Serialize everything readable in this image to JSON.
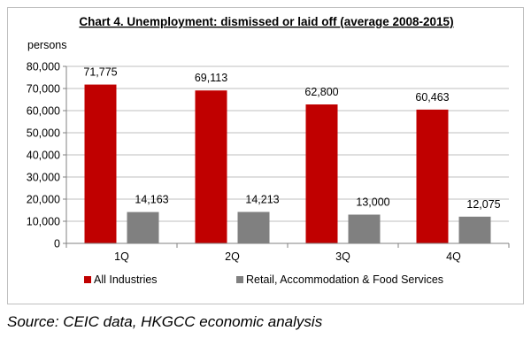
{
  "chart_data": {
    "type": "bar",
    "title": "Chart 4. Unemployment: dismissed or laid off  (average 2008-2015)",
    "ylabel": "persons",
    "xlabel": "",
    "categories": [
      "1Q",
      "2Q",
      "3Q",
      "4Q"
    ],
    "series": [
      {
        "name": "All Industries",
        "values": [
          71775,
          69113,
          62800,
          60463
        ],
        "labels": [
          "71,775",
          "69,113",
          "62,800",
          "60,463"
        ],
        "color": "#c00000"
      },
      {
        "name": "Retail, Accommodation & Food Services",
        "values": [
          14163,
          14213,
          13000,
          12075
        ],
        "labels": [
          "14,163",
          "14,213",
          "13,000",
          "12,075"
        ],
        "color": "#808080"
      }
    ],
    "ylim": [
      0,
      80000
    ],
    "yticks": [
      0,
      10000,
      20000,
      30000,
      40000,
      50000,
      60000,
      70000,
      80000
    ],
    "ytick_labels": [
      "0",
      "10,000",
      "20,000",
      "30,000",
      "40,000",
      "50,000",
      "60,000",
      "70,000",
      "80,000"
    ],
    "grid": true,
    "legend": "bottom"
  },
  "source": "Source: CEIC data, HKGCC economic analysis"
}
